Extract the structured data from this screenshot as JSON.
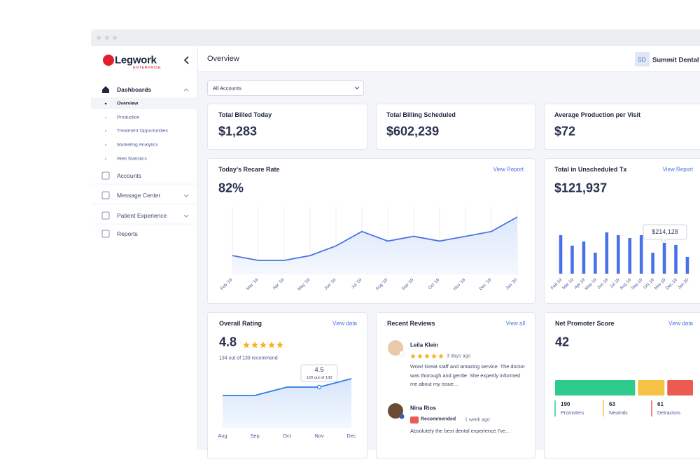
{
  "window": {
    "app": "Legwork",
    "edition": "ENTERPRISE"
  },
  "sidebar": {
    "nav": [
      {
        "label": "Dashboards",
        "items": [
          "Overview",
          "Production",
          "Treatment Opportunities",
          "Marketing Analytics",
          "Web Statistics"
        ]
      },
      {
        "label": "Accounts"
      },
      {
        "label": "Message Center"
      },
      {
        "label": "Patient Experience"
      },
      {
        "label": "Reports"
      }
    ]
  },
  "header": {
    "title": "Overview",
    "initials": "SD",
    "account": "Summit Dental"
  },
  "filter": {
    "selected": "All Accounts"
  },
  "stats": [
    {
      "label": "Total Billed Today",
      "value": "$1,283"
    },
    {
      "label": "Total Billing Scheduled",
      "value": "$602,239"
    },
    {
      "label": "Average Production per Visit",
      "value": "$72"
    }
  ],
  "recare": {
    "title": "Today's Recare Rate",
    "link": "View Report",
    "value": "82%",
    "chart": {
      "type": "line",
      "color": "#4a72e8",
      "categories": [
        "Feb '19",
        "Mar '19",
        "Apr '19",
        "May '19",
        "Jun '19",
        "Jul '19",
        "Aug '19",
        "Sep '19",
        "Oct '19",
        "Nov '19",
        "Dec '19",
        "Jan '20"
      ],
      "values": [
        74,
        73,
        73,
        74,
        76,
        79,
        77,
        78,
        77,
        78,
        79,
        82
      ]
    }
  },
  "unscheduled": {
    "title": "Total in Unscheduled Tx",
    "link": "View Report",
    "value": "$121,937",
    "chart": {
      "type": "bar",
      "color": "#4a72e8",
      "categories": [
        "Feb 19",
        "Mar 19",
        "Apr 19",
        "May 19",
        "Jun 19",
        "Jul 19",
        "Aug 19",
        "Sep 19",
        "Oct 19",
        "Nov 19",
        "Dec 19",
        "Jan 20"
      ],
      "values": [
        268000,
        195000,
        224000,
        146000,
        287000,
        268000,
        248000,
        268000,
        146000,
        214128,
        200000,
        117000
      ],
      "tooltip": "$214,128"
    }
  },
  "rating": {
    "title": "Overall Rating",
    "link": "View data",
    "value": "4.8",
    "summary": "134 out of 139 recommend",
    "chart": {
      "type": "line",
      "color": "#2f7be6",
      "categories": [
        "Aug",
        "Sep",
        "Oct",
        "Nov",
        "Dec"
      ],
      "values": [
        4.3,
        4.3,
        4.5,
        4.5,
        4.7
      ],
      "tooltip": {
        "label": "4.5",
        "detail": "128 out of 130"
      }
    }
  },
  "reviews": {
    "title": "Recent Reviews",
    "link": "View all",
    "items": [
      {
        "name": "Leila Klein",
        "time": "3 days ago",
        "text": "Wow! Great staff and amazing service. The doctor was thorough and gentle. She expertly informed me about my issue…"
      },
      {
        "name": "Nina Rios",
        "badge": "Recommended",
        "time": "1 week ago",
        "text": "Absolutely the best dental experience I've…"
      }
    ]
  },
  "nps": {
    "title": "Net Promoter Score",
    "link": "View data",
    "value": "42",
    "chart": {
      "type": "bar",
      "segments": [
        {
          "name": "Promoters",
          "value": 190,
          "color": "#2ecb8c"
        },
        {
          "name": "Neutrals",
          "value": 63,
          "color": "#f5c244"
        },
        {
          "name": "Detractors",
          "value": 61,
          "color": "#eb5b52"
        }
      ]
    }
  }
}
